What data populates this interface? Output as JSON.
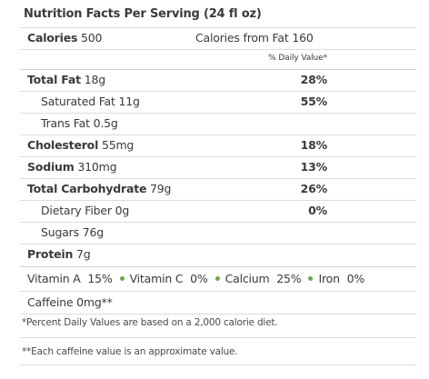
{
  "title": "Nutrition Facts Per Serving (24 fl oz)",
  "calories": {
    "label": "Calories",
    "value": "500",
    "from_fat_label": "Calories from Fat",
    "from_fat_value": "160"
  },
  "daily_value_header": "% Daily Value*",
  "rows": [
    {
      "label": "Total Fat",
      "amount": "18g",
      "pct": "28%"
    },
    {
      "label": "Saturated Fat",
      "amount": "11g",
      "pct": "55%"
    },
    {
      "label": "Trans Fat",
      "amount": "0.5g",
      "pct": ""
    },
    {
      "label": "Cholesterol",
      "amount": "55mg",
      "pct": "18%"
    },
    {
      "label": "Sodium",
      "amount": "310mg",
      "pct": "13%"
    },
    {
      "label": "Total Carbohydrate",
      "amount": "79g",
      "pct": "26%"
    },
    {
      "label": "Dietary Fiber",
      "amount": "0g",
      "pct": "0%"
    },
    {
      "label": "Sugars",
      "amount": "76g",
      "pct": ""
    },
    {
      "label": "Protein",
      "amount": "7g",
      "pct": ""
    }
  ],
  "vitamins": [
    {
      "label": "Vitamin A",
      "value": "15%"
    },
    {
      "label": "Vitamin C",
      "value": "0%"
    },
    {
      "label": "Calcium",
      "value": "25%"
    },
    {
      "label": "Iron",
      "value": "0%"
    }
  ],
  "caffeine": "Caffeine 0mg**",
  "footnote_1": "*Percent Daily Values are based on a 2,000 calorie diet.",
  "footnote_2": "**Each caffeine value is an approximate value.",
  "accent_dot_color": "#6aa84f"
}
